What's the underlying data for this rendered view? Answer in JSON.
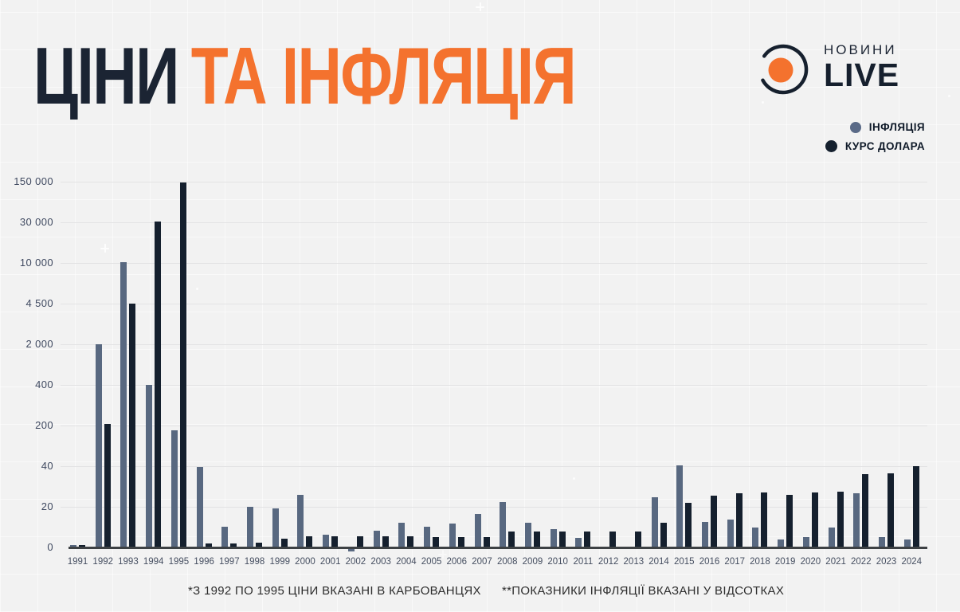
{
  "title": {
    "part1": "ЦІНИ",
    "part2": "ТА ІНФЛЯЦІЯ"
  },
  "logo": {
    "line1": "НОВИНИ",
    "line2": "LIVE"
  },
  "legend": [
    {
      "label": "ІНФЛЯЦІЯ",
      "color": "#5a6a87"
    },
    {
      "label": "КУРС ДОЛАРА",
      "color": "#15202e"
    }
  ],
  "footnotes": {
    "left": "*З 1992 ПО 1995 ЦІНИ ВКАЗАНІ В КАРБОВАНЦЯХ",
    "right": "**ПОКАЗНИКИ ІНФЛЯЦІЇ ВКАЗАНІ У ВІДСОТКАХ"
  },
  "colors": {
    "background": "#f2f2f2",
    "title_navy": "#1b2433",
    "title_orange": "#f4722e",
    "bar_inflation": "#586880",
    "bar_usd": "#15202e",
    "gridline": "#e3e3e4",
    "axis_line": "#3d4144",
    "tick_text": "#3f4960"
  },
  "chart_data": {
    "type": "bar",
    "title": "ЦІНИ ТА ІНФЛЯЦІЯ",
    "xlabel": "",
    "ylabel": "",
    "grid": true,
    "legend_position": "top-right",
    "y_axis_note": "non-linear scale: listed tick values are evenly spaced",
    "y_ticks": [
      0,
      20,
      40,
      200,
      400,
      2000,
      4500,
      10000,
      30000,
      150000
    ],
    "y_tick_labels": [
      "0",
      "20",
      "40",
      "200",
      "400",
      "2 000",
      "4 500",
      "10 000",
      "30 000",
      "150 000"
    ],
    "categories": [
      "1991",
      "1992",
      "1993",
      "1994",
      "1995",
      "1996",
      "1997",
      "1998",
      "1999",
      "2000",
      "2001",
      "2002",
      "2003",
      "2004",
      "2005",
      "2006",
      "2007",
      "2008",
      "2009",
      "2010",
      "2011",
      "2012",
      "2013",
      "2014",
      "2015",
      "2016",
      "2017",
      "2018",
      "2019",
      "2020",
      "2021",
      "2022",
      "2023",
      "2024"
    ],
    "series": [
      {
        "name": "ІНФЛЯЦІЯ",
        "color": "#586880",
        "values": [
          1,
          2000,
          10256,
          401,
          182,
          39.7,
          10.1,
          20,
          19.2,
          25.8,
          6.1,
          -0.6,
          8.2,
          12.3,
          10.3,
          11.6,
          16.6,
          22.3,
          12.3,
          9.1,
          4.6,
          0,
          0.5,
          24.9,
          43.3,
          12.4,
          13.7,
          9.8,
          4.1,
          5,
          10,
          26.6,
          5.1,
          4
        ]
      },
      {
        "name": "КУРС ДОЛАРА",
        "color": "#15202e",
        "values": [
          1,
          208,
          4539,
          31700,
          147463,
          1.83,
          1.86,
          2.45,
          4.13,
          5.44,
          5.37,
          5.33,
          5.33,
          5.31,
          5.12,
          5.05,
          5.05,
          7.7,
          7.79,
          7.94,
          7.97,
          7.99,
          7.99,
          12,
          21.8,
          25.5,
          26.6,
          27.2,
          25.9,
          27,
          27.3,
          36,
          36.6,
          40
        ]
      }
    ]
  }
}
